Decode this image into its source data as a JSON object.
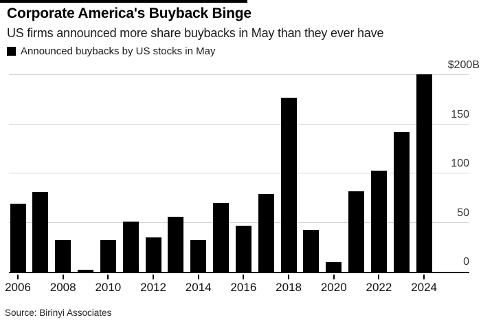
{
  "header": {
    "title": "Corporate America's Buyback Binge",
    "subtitle": "US firms announced more share buybacks in May than they ever have"
  },
  "legend": {
    "label": "Announced buybacks by US stocks in May",
    "swatch_color": "#000000"
  },
  "footer": {
    "source": "Source: Birinyi Associates"
  },
  "colors": {
    "bar": "#000000",
    "gridline": "#d2d2d2",
    "axis_line": "#000000",
    "accent_bar": "#000000"
  },
  "chart_data": {
    "type": "bar",
    "title": "Corporate America's Buyback Binge",
    "subtitle": "US firms announced more share buybacks in May than they ever have",
    "series_name": "Announced buybacks by US stocks in May",
    "unit": "billions USD",
    "categories": [
      2006,
      2007,
      2008,
      2009,
      2010,
      2011,
      2012,
      2013,
      2014,
      2015,
      2016,
      2017,
      2018,
      2019,
      2020,
      2021,
      2022,
      2023,
      2024
    ],
    "values": [
      69,
      81,
      32,
      2,
      32,
      51,
      35,
      56,
      32,
      70,
      47,
      79,
      177,
      43,
      10,
      82,
      103,
      142,
      201
    ],
    "bar_color": "#000000",
    "x_tick_labels": [
      "2006",
      "2008",
      "2010",
      "2012",
      "2014",
      "2016",
      "2018",
      "2020",
      "2022",
      "2024"
    ],
    "y_axis": {
      "side": "right",
      "range": [
        0,
        210
      ],
      "ticks": [
        {
          "value": 0,
          "label": "0"
        },
        {
          "value": 50,
          "label": "50"
        },
        {
          "value": 100,
          "label": "100"
        },
        {
          "value": 150,
          "label": "150"
        },
        {
          "value": 200,
          "label": "$200B"
        }
      ]
    },
    "grid": "horizontal",
    "legend_position": "top-left",
    "source": "Source: Birinyi Associates"
  }
}
